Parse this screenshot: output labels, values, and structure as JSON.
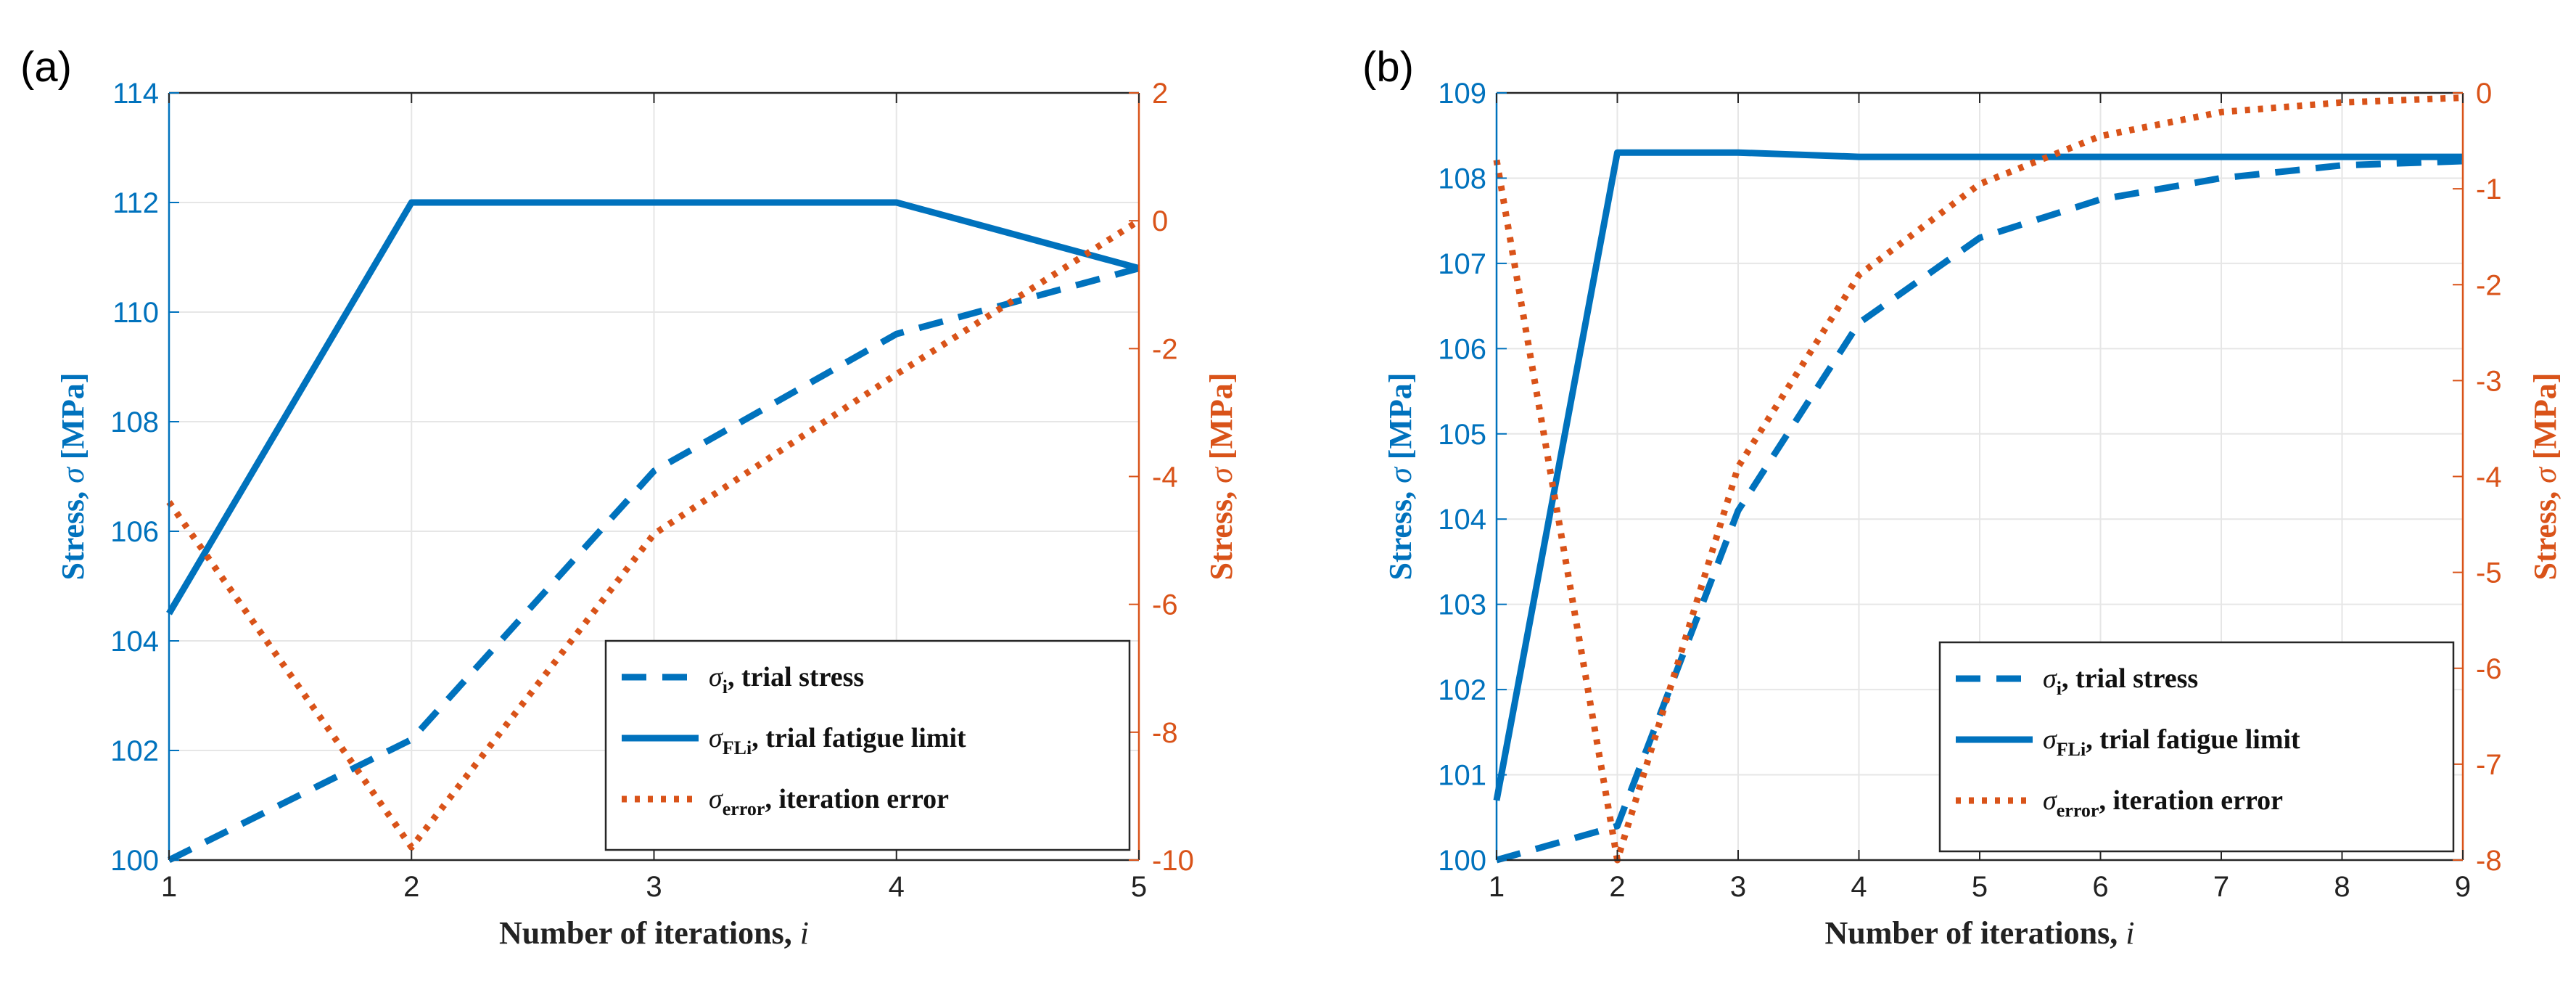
{
  "colors": {
    "primary": "#0072BD",
    "secondary": "#D95319",
    "grid": "#e6e6e6",
    "axis": "#262626"
  },
  "chart_data": [
    {
      "type": "line",
      "panel_label": "(a)",
      "xlabel_text": "Number of iterations, ",
      "xlabel_symbol": "i",
      "ylabel_left_text": "Stress, ",
      "ylabel_right_text": "Stress, ",
      "ylabel_symbol": "σ",
      "ylabel_unit": " [MPa]",
      "xlim": [
        1,
        5
      ],
      "ylim_left": [
        100,
        114
      ],
      "ylim_right": [
        -10,
        2
      ],
      "xticks": [
        1,
        2,
        3,
        4,
        5
      ],
      "yticks_left": [
        100,
        102,
        104,
        106,
        108,
        110,
        112,
        114
      ],
      "yticks_right": [
        -10,
        -8,
        -6,
        -4,
        -2,
        0,
        2
      ],
      "grid": true,
      "legend_position": "bottom-right",
      "series": [
        {
          "name": "trial stress",
          "axis": "left",
          "style": "dashed",
          "legend_sym": "σ",
          "legend_sub": "i",
          "legend_text": ", trial stress",
          "x": [
            1,
            2,
            3,
            4,
            5
          ],
          "y": [
            100,
            102.2,
            107.1,
            109.6,
            110.8
          ]
        },
        {
          "name": "trial fatigue limit",
          "axis": "left",
          "style": "solid",
          "legend_sym": "σ",
          "legend_sub": "FLi",
          "legend_text": ", trial fatigue limit",
          "x": [
            1,
            2,
            3,
            4,
            5
          ],
          "y": [
            104.5,
            112,
            112,
            112,
            110.8
          ]
        },
        {
          "name": "iteration error",
          "axis": "right",
          "style": "dotted",
          "legend_sym": "σ",
          "legend_sub": "error",
          "legend_text": ", iteration error",
          "x": [
            1,
            2,
            3,
            4,
            5
          ],
          "y": [
            -4.4,
            -9.8,
            -4.9,
            -2.4,
            0
          ]
        }
      ]
    },
    {
      "type": "line",
      "panel_label": "(b)",
      "xlabel_text": "Number of iterations, ",
      "xlabel_symbol": "i",
      "ylabel_left_text": "Stress, ",
      "ylabel_right_text": "Stress, ",
      "ylabel_symbol": "σ",
      "ylabel_unit": " [MPa]",
      "xlim": [
        1,
        9
      ],
      "ylim_left": [
        100,
        109
      ],
      "ylim_right": [
        -8,
        0
      ],
      "xticks": [
        1,
        2,
        3,
        4,
        5,
        6,
        7,
        8,
        9
      ],
      "yticks_left": [
        100,
        101,
        102,
        103,
        104,
        105,
        106,
        107,
        108,
        109
      ],
      "yticks_right": [
        -8,
        -7,
        -6,
        -5,
        -4,
        -3,
        -2,
        -1,
        0
      ],
      "grid": true,
      "legend_position": "bottom-right",
      "series": [
        {
          "name": "trial stress",
          "axis": "left",
          "style": "dashed",
          "legend_sym": "σ",
          "legend_sub": "i",
          "legend_text": ", trial stress",
          "x": [
            1,
            2,
            3,
            4,
            5,
            6,
            7,
            8,
            9
          ],
          "y": [
            100,
            100.4,
            104.1,
            106.3,
            107.3,
            107.75,
            108.0,
            108.15,
            108.2
          ]
        },
        {
          "name": "trial fatigue limit",
          "axis": "left",
          "style": "solid",
          "legend_sym": "σ",
          "legend_sub": "FLi",
          "legend_text": ", trial fatigue limit",
          "x": [
            1,
            2,
            3,
            4,
            5,
            6,
            7,
            8,
            9
          ],
          "y": [
            100.7,
            108.3,
            108.3,
            108.25,
            108.25,
            108.25,
            108.25,
            108.25,
            108.25
          ]
        },
        {
          "name": "iteration error",
          "axis": "right",
          "style": "dotted",
          "legend_sym": "σ",
          "legend_sub": "error",
          "legend_text": ", iteration error",
          "x": [
            1,
            2,
            3,
            4,
            5,
            6,
            7,
            8,
            9
          ],
          "y": [
            -0.7,
            -8,
            -3.9,
            -1.9,
            -0.95,
            -0.45,
            -0.2,
            -0.1,
            -0.05
          ]
        }
      ]
    }
  ]
}
